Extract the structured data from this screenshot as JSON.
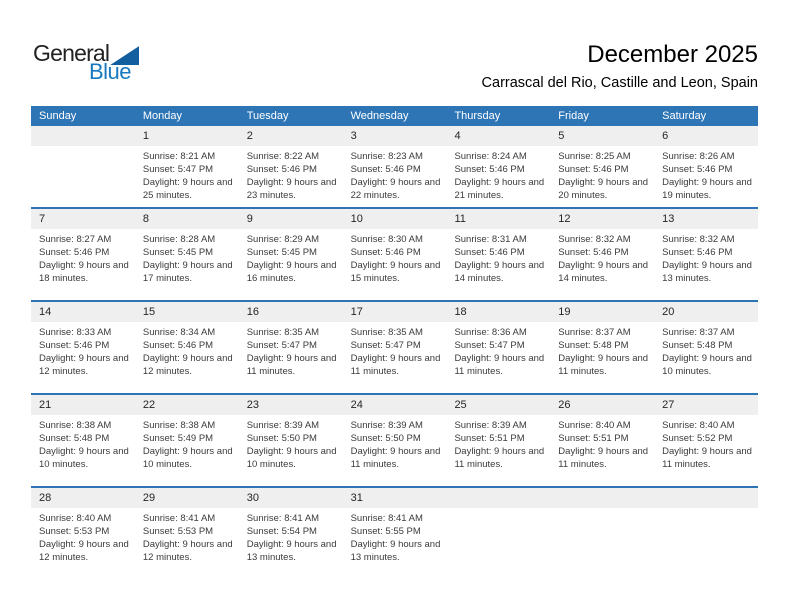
{
  "logo": {
    "general": "General",
    "blue": "Blue"
  },
  "header": {
    "title": "December 2025",
    "subtitle": "Carrascal del Rio, Castille and Leon, Spain"
  },
  "colors": {
    "header_bar_blue": "#2e75b6",
    "week_divider_blue": "#2e74b5",
    "day_number_band_gray": "#efefef",
    "logo_triangle_blue": "#135e9e",
    "logo_text_blue": "#1879c0",
    "cell_text_gray": "#3b3b3b"
  },
  "calendar": {
    "day_headers": [
      "Sunday",
      "Monday",
      "Tuesday",
      "Wednesday",
      "Thursday",
      "Friday",
      "Saturday"
    ],
    "labels": {
      "sunrise": "Sunrise:",
      "sunset": "Sunset:",
      "daylight": "Daylight:"
    },
    "weeks": [
      {
        "days": [
          null,
          {
            "day": "1",
            "sunrise": "8:21 AM",
            "sunset": "5:47 PM",
            "daylight": "9 hours and 25 minutes."
          },
          {
            "day": "2",
            "sunrise": "8:22 AM",
            "sunset": "5:46 PM",
            "daylight": "9 hours and 23 minutes."
          },
          {
            "day": "3",
            "sunrise": "8:23 AM",
            "sunset": "5:46 PM",
            "daylight": "9 hours and 22 minutes."
          },
          {
            "day": "4",
            "sunrise": "8:24 AM",
            "sunset": "5:46 PM",
            "daylight": "9 hours and 21 minutes."
          },
          {
            "day": "5",
            "sunrise": "8:25 AM",
            "sunset": "5:46 PM",
            "daylight": "9 hours and 20 minutes."
          },
          {
            "day": "6",
            "sunrise": "8:26 AM",
            "sunset": "5:46 PM",
            "daylight": "9 hours and 19 minutes."
          }
        ]
      },
      {
        "days": [
          {
            "day": "7",
            "sunrise": "8:27 AM",
            "sunset": "5:46 PM",
            "daylight": "9 hours and 18 minutes."
          },
          {
            "day": "8",
            "sunrise": "8:28 AM",
            "sunset": "5:45 PM",
            "daylight": "9 hours and 17 minutes."
          },
          {
            "day": "9",
            "sunrise": "8:29 AM",
            "sunset": "5:45 PM",
            "daylight": "9 hours and 16 minutes."
          },
          {
            "day": "10",
            "sunrise": "8:30 AM",
            "sunset": "5:46 PM",
            "daylight": "9 hours and 15 minutes."
          },
          {
            "day": "11",
            "sunrise": "8:31 AM",
            "sunset": "5:46 PM",
            "daylight": "9 hours and 14 minutes."
          },
          {
            "day": "12",
            "sunrise": "8:32 AM",
            "sunset": "5:46 PM",
            "daylight": "9 hours and 14 minutes."
          },
          {
            "day": "13",
            "sunrise": "8:32 AM",
            "sunset": "5:46 PM",
            "daylight": "9 hours and 13 minutes."
          }
        ]
      },
      {
        "days": [
          {
            "day": "14",
            "sunrise": "8:33 AM",
            "sunset": "5:46 PM",
            "daylight": "9 hours and 12 minutes."
          },
          {
            "day": "15",
            "sunrise": "8:34 AM",
            "sunset": "5:46 PM",
            "daylight": "9 hours and 12 minutes."
          },
          {
            "day": "16",
            "sunrise": "8:35 AM",
            "sunset": "5:47 PM",
            "daylight": "9 hours and 11 minutes."
          },
          {
            "day": "17",
            "sunrise": "8:35 AM",
            "sunset": "5:47 PM",
            "daylight": "9 hours and 11 minutes."
          },
          {
            "day": "18",
            "sunrise": "8:36 AM",
            "sunset": "5:47 PM",
            "daylight": "9 hours and 11 minutes."
          },
          {
            "day": "19",
            "sunrise": "8:37 AM",
            "sunset": "5:48 PM",
            "daylight": "9 hours and 11 minutes."
          },
          {
            "day": "20",
            "sunrise": "8:37 AM",
            "sunset": "5:48 PM",
            "daylight": "9 hours and 10 minutes."
          }
        ]
      },
      {
        "days": [
          {
            "day": "21",
            "sunrise": "8:38 AM",
            "sunset": "5:48 PM",
            "daylight": "9 hours and 10 minutes."
          },
          {
            "day": "22",
            "sunrise": "8:38 AM",
            "sunset": "5:49 PM",
            "daylight": "9 hours and 10 minutes."
          },
          {
            "day": "23",
            "sunrise": "8:39 AM",
            "sunset": "5:50 PM",
            "daylight": "9 hours and 10 minutes."
          },
          {
            "day": "24",
            "sunrise": "8:39 AM",
            "sunset": "5:50 PM",
            "daylight": "9 hours and 11 minutes."
          },
          {
            "day": "25",
            "sunrise": "8:39 AM",
            "sunset": "5:51 PM",
            "daylight": "9 hours and 11 minutes."
          },
          {
            "day": "26",
            "sunrise": "8:40 AM",
            "sunset": "5:51 PM",
            "daylight": "9 hours and 11 minutes."
          },
          {
            "day": "27",
            "sunrise": "8:40 AM",
            "sunset": "5:52 PM",
            "daylight": "9 hours and 11 minutes."
          }
        ]
      },
      {
        "days": [
          {
            "day": "28",
            "sunrise": "8:40 AM",
            "sunset": "5:53 PM",
            "daylight": "9 hours and 12 minutes."
          },
          {
            "day": "29",
            "sunrise": "8:41 AM",
            "sunset": "5:53 PM",
            "daylight": "9 hours and 12 minutes."
          },
          {
            "day": "30",
            "sunrise": "8:41 AM",
            "sunset": "5:54 PM",
            "daylight": "9 hours and 13 minutes."
          },
          {
            "day": "31",
            "sunrise": "8:41 AM",
            "sunset": "5:55 PM",
            "daylight": "9 hours and 13 minutes."
          },
          null,
          null,
          null
        ]
      }
    ]
  }
}
